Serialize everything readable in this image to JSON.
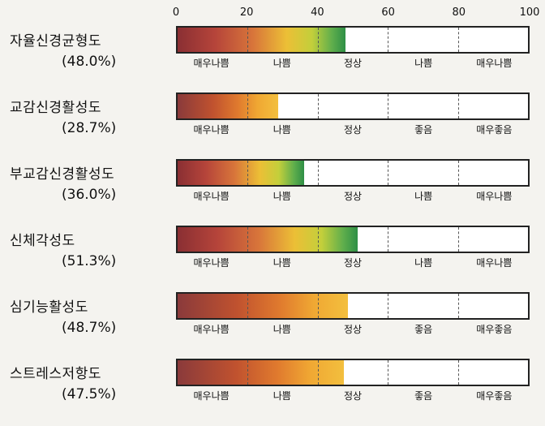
{
  "chart_data": {
    "type": "bar",
    "orientation": "horizontal",
    "xlim": [
      0,
      100
    ],
    "ticks": [
      "0",
      "20",
      "40",
      "60",
      "80",
      "100"
    ],
    "gridlines": "dashed at each tick",
    "rows": [
      {
        "name": "자율신경균형도",
        "percent_label": "(48.0%)",
        "value": 48.0,
        "scale": "a",
        "zones": [
          "매우나쁨",
          "나쁨",
          "정상",
          "나쁨",
          "매우나쁨"
        ]
      },
      {
        "name": "교감신경활성도",
        "percent_label": "(28.7%)",
        "value": 28.7,
        "scale": "b",
        "zones": [
          "매우나쁨",
          "나쁨",
          "정상",
          "좋음",
          "매우좋음"
        ]
      },
      {
        "name": "부교감신경활성도",
        "percent_label": "(36.0%)",
        "value": 36.0,
        "scale": "a",
        "zones": [
          "매우나쁨",
          "나쁨",
          "정상",
          "나쁨",
          "매우나쁨"
        ]
      },
      {
        "name": "신체각성도",
        "percent_label": "(51.3%)",
        "value": 51.3,
        "scale": "a",
        "zones": [
          "매우나쁨",
          "나쁨",
          "정상",
          "나쁨",
          "매우나쁨"
        ]
      },
      {
        "name": "심기능활성도",
        "percent_label": "(48.7%)",
        "value": 48.7,
        "scale": "b",
        "zones": [
          "매우나쁨",
          "나쁨",
          "정상",
          "좋음",
          "매우좋음"
        ]
      },
      {
        "name": "스트레스저항도",
        "percent_label": "(47.5%)",
        "value": 47.5,
        "scale": "b",
        "zones": [
          "매우나쁨",
          "나쁨",
          "정상",
          "좋음",
          "매우좋음"
        ]
      }
    ],
    "colors": {
      "scale_a": [
        "#8a2f33",
        "#d8753a",
        "#ecbf36",
        "#2e8f46"
      ],
      "scale_b": [
        "#8a3a3b",
        "#e07a2e",
        "#f3bf3e"
      ],
      "frame": "#222222",
      "background": "#f4f3ef"
    }
  }
}
